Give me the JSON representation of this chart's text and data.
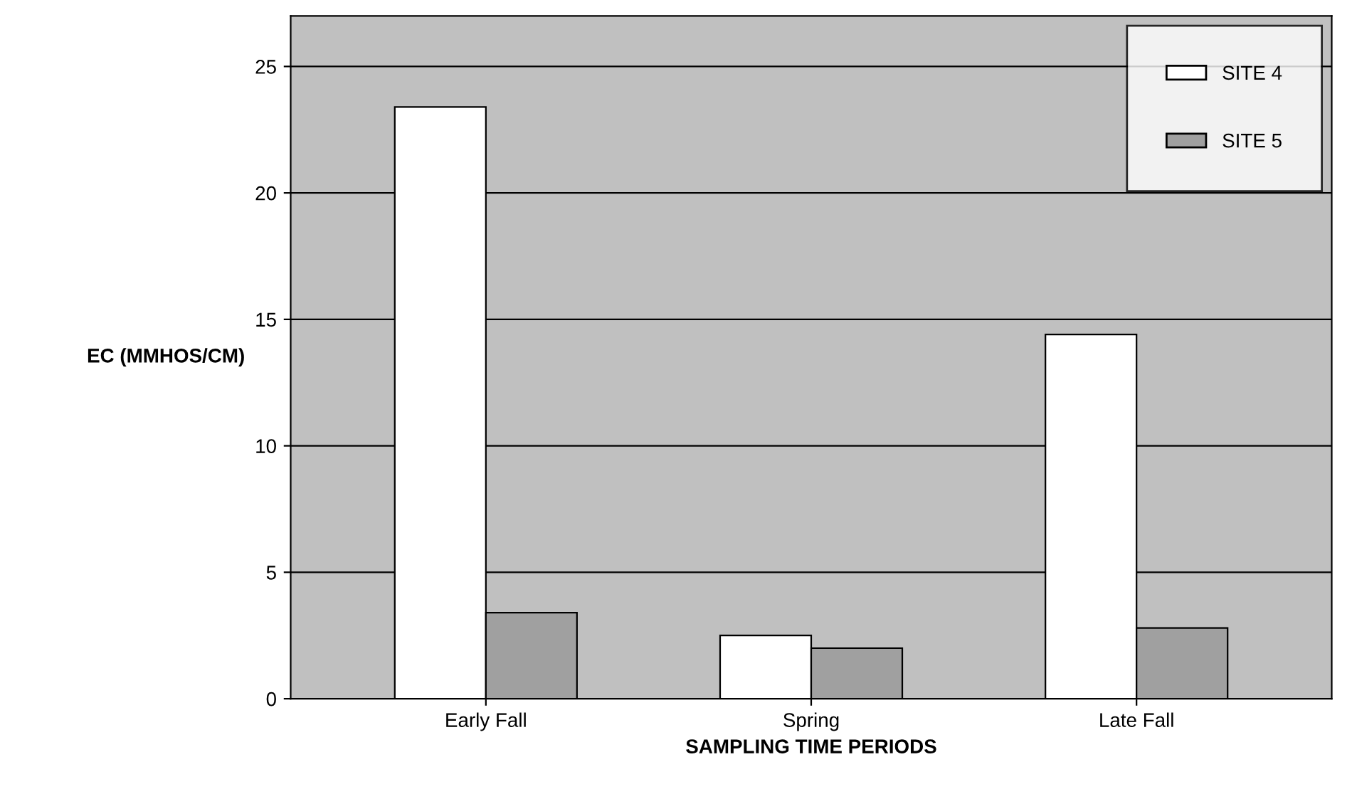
{
  "chart_data": {
    "type": "bar",
    "xlabel": "SAMPLING TIME PERIODS",
    "ylabel": "EC (MMHOS/CM)",
    "categories": [
      "Early Fall",
      "Spring",
      "Late Fall"
    ],
    "series": [
      {
        "name": "SITE 4",
        "color": "#ffffff",
        "values": [
          23.4,
          2.5,
          14.4
        ]
      },
      {
        "name": "SITE 5",
        "color": "#a0a0a0",
        "values": [
          3.4,
          2.0,
          2.8
        ]
      }
    ],
    "ylim": [
      0,
      27
    ],
    "yticks": [
      0,
      5,
      10,
      15,
      20,
      25
    ],
    "grid": "y",
    "legend": "top right"
  }
}
